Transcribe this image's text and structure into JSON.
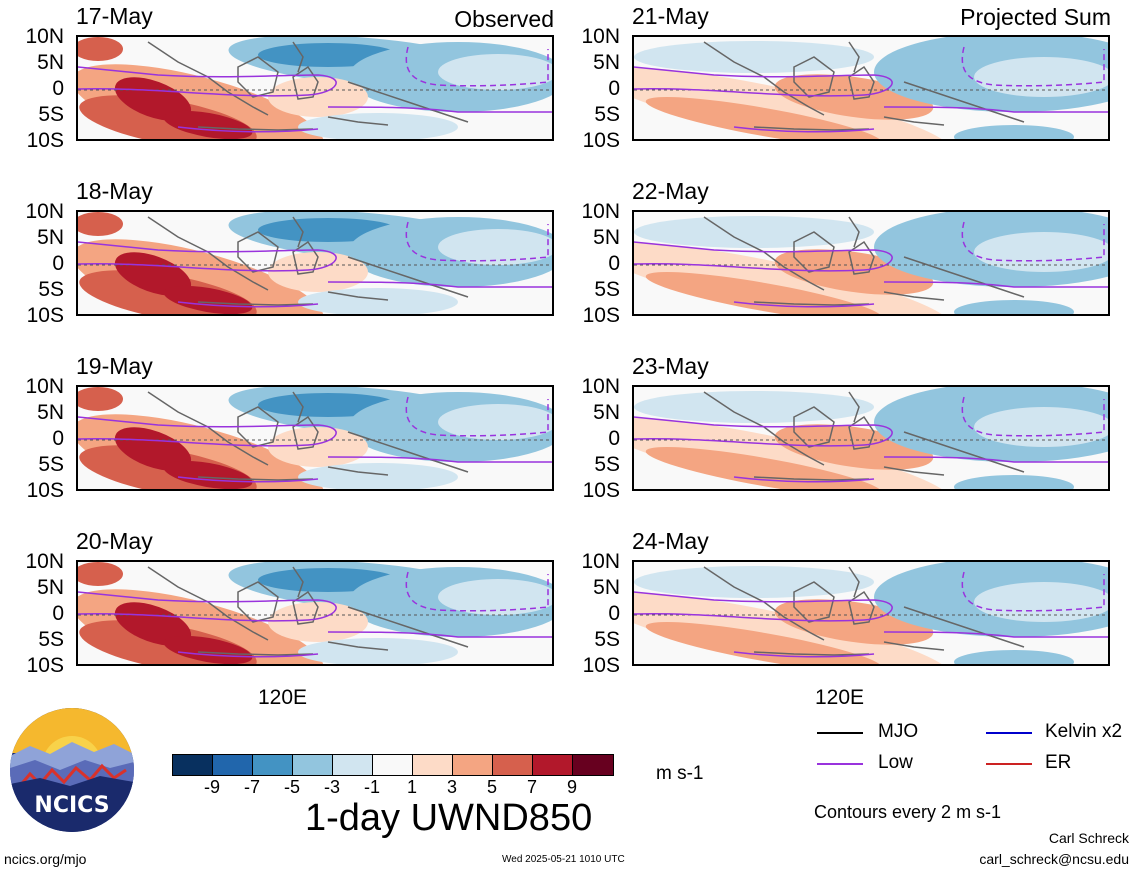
{
  "left_column": {
    "corner_label": "Observed",
    "panels": [
      {
        "date": "17-May"
      },
      {
        "date": "18-May"
      },
      {
        "date": "19-May"
      },
      {
        "date": "20-May"
      }
    ],
    "lon_label": "120E"
  },
  "right_column": {
    "corner_label": "Projected Sum",
    "panels": [
      {
        "date": "21-May"
      },
      {
        "date": "22-May"
      },
      {
        "date": "23-May"
      },
      {
        "date": "24-May"
      }
    ],
    "lon_label": "120E"
  },
  "lat_labels": [
    "10N",
    "5N",
    "0",
    "5S",
    "10S"
  ],
  "colorbar": {
    "labels": [
      "-9",
      "-7",
      "-5",
      "-3",
      "-1",
      "1",
      "3",
      "5",
      "7",
      "9"
    ],
    "colors": [
      "#08305f",
      "#2166ac",
      "#4393c3",
      "#92c5de",
      "#d1e5f0",
      "#f9f9f9",
      "#fddbc7",
      "#f4a582",
      "#d6604d",
      "#b2182b",
      "#67001f"
    ],
    "units": "m s-1"
  },
  "title": "1-day UWND850",
  "legend": {
    "items": [
      {
        "label": "MJO",
        "color": "#000000"
      },
      {
        "label": "Kelvin x2",
        "color": "#0000cc"
      },
      {
        "label": "Low",
        "color": "#9933dd"
      },
      {
        "label": "ER",
        "color": "#cc2222"
      }
    ],
    "note": "Contours every 2 m s-1"
  },
  "logo_text": "NCICS",
  "footer": {
    "url": "ncics.org/mjo",
    "timestamp": "Wed 2025-05-21 1010 UTC",
    "author": "Carl Schreck",
    "email": "carl_schreck@ncsu.edu"
  }
}
